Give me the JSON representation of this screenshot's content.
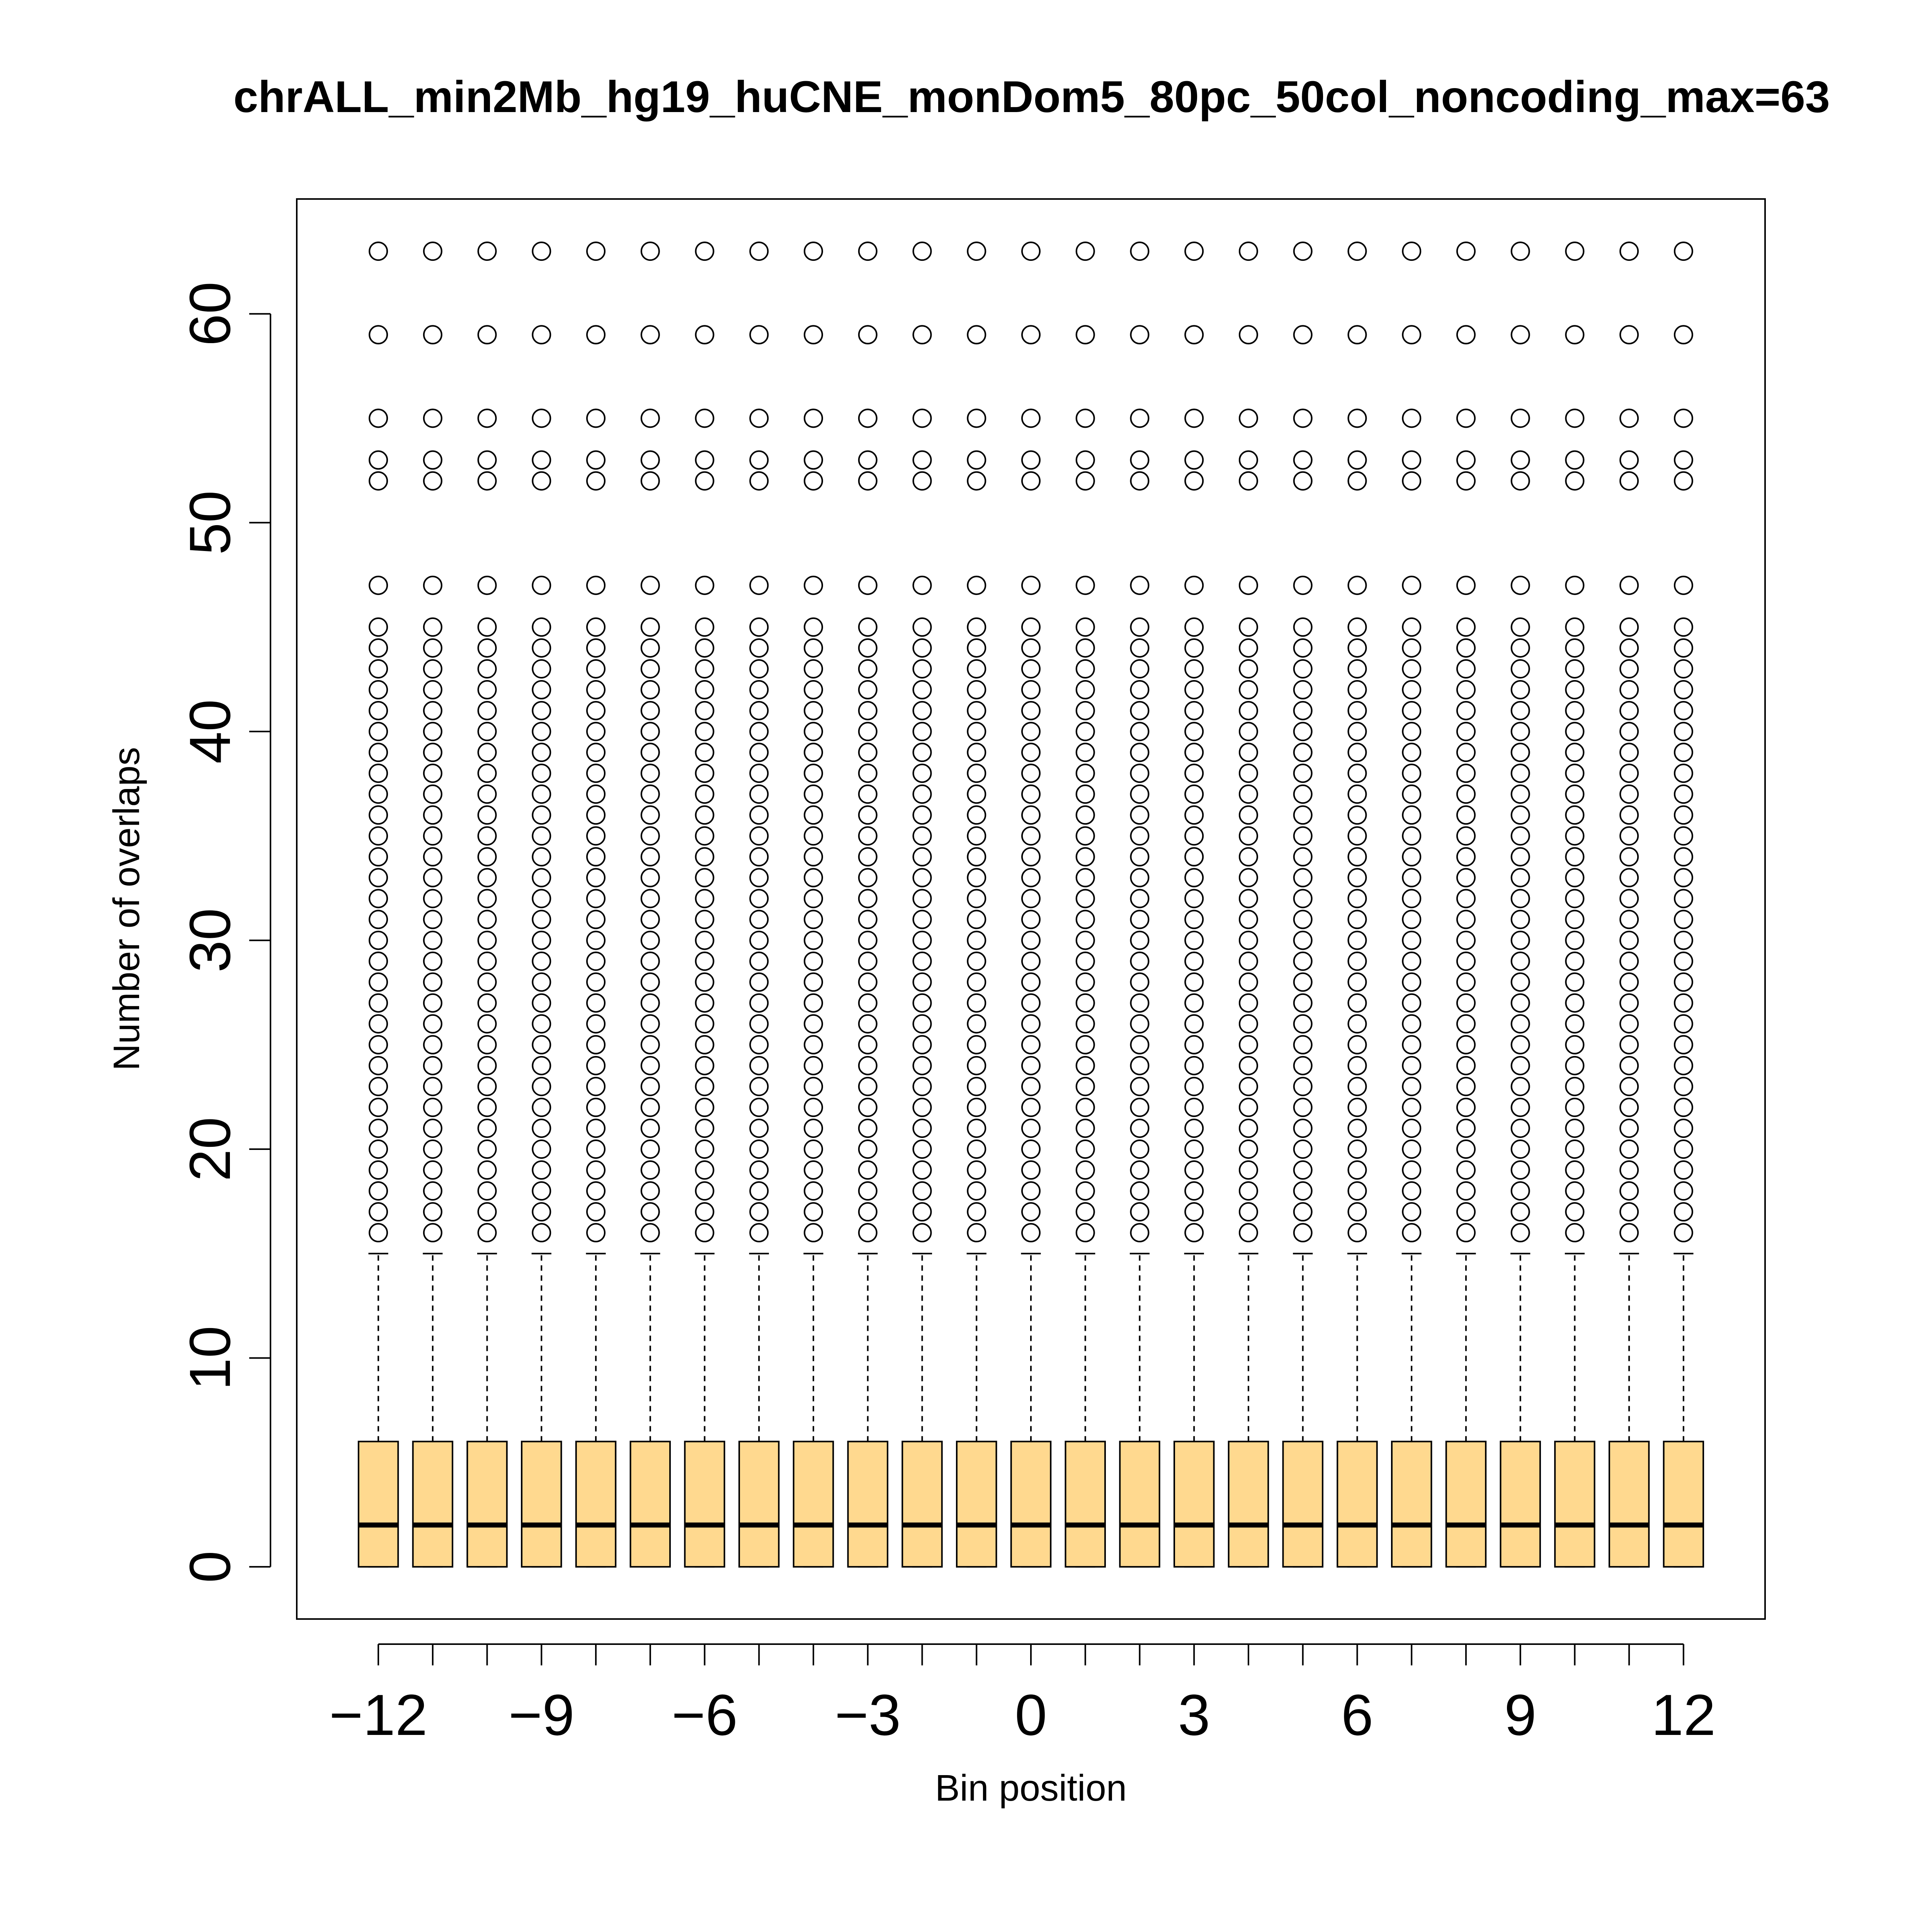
{
  "chart_data": {
    "type": "box",
    "title": "chrALL_min2Mb_hg19_huCNE_monDom5_80pc_50col_noncoding_max=63",
    "xlabel": "Bin position",
    "ylabel": "Number of overlaps",
    "xlim": [
      -13.5,
      13.5
    ],
    "ylim": [
      -2.5,
      65.5
    ],
    "x_ticks": [
      -12,
      -11,
      -10,
      -9,
      -8,
      -7,
      -6,
      -5,
      -4,
      -3,
      -2,
      -1,
      0,
      1,
      2,
      3,
      4,
      5,
      6,
      7,
      8,
      9,
      10,
      11,
      12
    ],
    "x_tick_labels": [
      "−12",
      "−9",
      "−6",
      "−3",
      "0",
      "3",
      "6",
      "9",
      "12"
    ],
    "x_tick_label_positions": [
      -12,
      -9,
      -6,
      -3,
      0,
      3,
      6,
      9,
      12
    ],
    "y_ticks": [
      0,
      10,
      20,
      30,
      40,
      50,
      60
    ],
    "y_tick_labels": [
      "0",
      "10",
      "20",
      "30",
      "40",
      "50",
      "60"
    ],
    "grid": false,
    "legend": "none",
    "box_fill": "#FFD98F",
    "categories": [
      -12,
      -11,
      -10,
      -9,
      -8,
      -7,
      -6,
      -5,
      -4,
      -3,
      -2,
      -1,
      0,
      1,
      2,
      3,
      4,
      5,
      6,
      7,
      8,
      9,
      10,
      11,
      12
    ],
    "box_stats": {
      "whisker_low": 0,
      "q1": 0,
      "median": 2,
      "q3": 6,
      "whisker_high": 15
    },
    "outliers": [
      16,
      17,
      18,
      19,
      20,
      21,
      22,
      23,
      24,
      25,
      26,
      27,
      28,
      29,
      30,
      31,
      32,
      33,
      34,
      35,
      36,
      37,
      38,
      39,
      40,
      41,
      42,
      43,
      44,
      45,
      47,
      52,
      53,
      55,
      59,
      63
    ]
  }
}
